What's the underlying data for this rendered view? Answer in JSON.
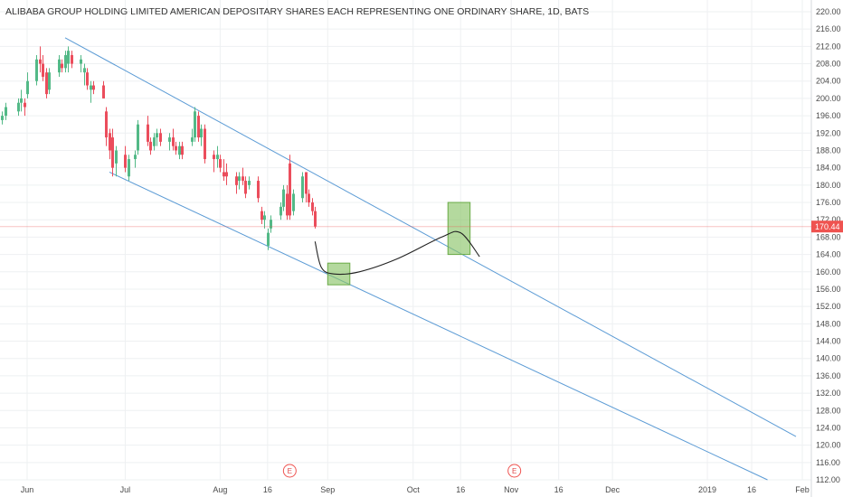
{
  "chart_data": {
    "type": "candlestick",
    "title": "ALIBABA GROUP HOLDING LIMITED AMERICAN DEPOSITARY SHARES EACH REPRESENTING ONE ORDINARY SHARE, 1D, BATS",
    "ylim": [
      112,
      222
    ],
    "yticks": [
      "220.00",
      "216.00",
      "212.00",
      "208.00",
      "204.00",
      "200.00",
      "196.00",
      "192.00",
      "188.00",
      "184.00",
      "180.00",
      "176.00",
      "172.00",
      "168.00",
      "164.00",
      "160.00",
      "156.00",
      "152.00",
      "148.00",
      "144.00",
      "140.00",
      "136.00",
      "132.00",
      "128.00",
      "124.00",
      "120.00",
      "116.00",
      "112.00"
    ],
    "xticks": [
      {
        "label": "Jun",
        "date": "2018-06-01"
      },
      {
        "label": "Jul",
        "date": "2018-07-02"
      },
      {
        "label": "Aug",
        "date": "2018-08-01"
      },
      {
        "label": "16",
        "date": "2018-08-16"
      },
      {
        "label": "Sep",
        "date": "2018-09-04"
      },
      {
        "label": "Oct",
        "date": "2018-10-01"
      },
      {
        "label": "16",
        "date": "2018-10-16"
      },
      {
        "label": "Nov",
        "date": "2018-11-01"
      },
      {
        "label": "16",
        "date": "2018-11-16"
      },
      {
        "label": "Dec",
        "date": "2018-12-03"
      },
      {
        "label": "2019",
        "date": "2019-01-02"
      },
      {
        "label": "16",
        "date": "2019-01-16"
      },
      {
        "label": "Feb",
        "date": "2019-02-01"
      }
    ],
    "last_price": "170.44",
    "candles": [
      {
        "date": "2018-05-24",
        "o": 195,
        "h": 197,
        "l": 194,
        "c": 196
      },
      {
        "date": "2018-05-25",
        "o": 196,
        "h": 199,
        "l": 195,
        "c": 198
      },
      {
        "date": "2018-05-29",
        "o": 197,
        "h": 200,
        "l": 196,
        "c": 199
      },
      {
        "date": "2018-05-30",
        "o": 199,
        "h": 202,
        "l": 197,
        "c": 200
      },
      {
        "date": "2018-05-31",
        "o": 199,
        "h": 200,
        "l": 196,
        "c": 198
      },
      {
        "date": "2018-06-01",
        "o": 201,
        "h": 206,
        "l": 200,
        "c": 204
      },
      {
        "date": "2018-06-04",
        "o": 204,
        "h": 210,
        "l": 203,
        "c": 209
      },
      {
        "date": "2018-06-05",
        "o": 209,
        "h": 212,
        "l": 206,
        "c": 208
      },
      {
        "date": "2018-06-06",
        "o": 208,
        "h": 210,
        "l": 204,
        "c": 205
      },
      {
        "date": "2018-06-07",
        "o": 206,
        "h": 207,
        "l": 200,
        "c": 201
      },
      {
        "date": "2018-06-08",
        "o": 202,
        "h": 207,
        "l": 201,
        "c": 206
      },
      {
        "date": "2018-06-11",
        "o": 206,
        "h": 210,
        "l": 205,
        "c": 209
      },
      {
        "date": "2018-06-12",
        "o": 208,
        "h": 209,
        "l": 206,
        "c": 207
      },
      {
        "date": "2018-06-13",
        "o": 207,
        "h": 211,
        "l": 206,
        "c": 210
      },
      {
        "date": "2018-06-14",
        "o": 208,
        "h": 212,
        "l": 206,
        "c": 211
      },
      {
        "date": "2018-06-15",
        "o": 210,
        "h": 211,
        "l": 207,
        "c": 208
      },
      {
        "date": "2018-06-18",
        "o": 208,
        "h": 210,
        "l": 206,
        "c": 209
      },
      {
        "date": "2018-06-19",
        "o": 206,
        "h": 208,
        "l": 203,
        "c": 207
      },
      {
        "date": "2018-06-20",
        "o": 206,
        "h": 207,
        "l": 202,
        "c": 203
      },
      {
        "date": "2018-06-21",
        "o": 202,
        "h": 204,
        "l": 199,
        "c": 203
      },
      {
        "date": "2018-06-22",
        "o": 203,
        "h": 204,
        "l": 201,
        "c": 202
      },
      {
        "date": "2018-06-25",
        "o": 203,
        "h": 204,
        "l": 200,
        "c": 200
      },
      {
        "date": "2018-06-26",
        "o": 197,
        "h": 198,
        "l": 189,
        "c": 191
      },
      {
        "date": "2018-06-27",
        "o": 192,
        "h": 193,
        "l": 186,
        "c": 188
      },
      {
        "date": "2018-06-28",
        "o": 191,
        "h": 193,
        "l": 182,
        "c": 184
      },
      {
        "date": "2018-06-29",
        "o": 185,
        "h": 189,
        "l": 182,
        "c": 188
      },
      {
        "date": "2018-07-02",
        "o": 187,
        "h": 189,
        "l": 183,
        "c": 184
      },
      {
        "date": "2018-07-03",
        "o": 182,
        "h": 187,
        "l": 181,
        "c": 186
      },
      {
        "date": "2018-07-05",
        "o": 186,
        "h": 188,
        "l": 184,
        "c": 187
      },
      {
        "date": "2018-07-06",
        "o": 188,
        "h": 195,
        "l": 187,
        "c": 194
      },
      {
        "date": "2018-07-09",
        "o": 194,
        "h": 196,
        "l": 189,
        "c": 190
      },
      {
        "date": "2018-07-10",
        "o": 190,
        "h": 191,
        "l": 187,
        "c": 188
      },
      {
        "date": "2018-07-11",
        "o": 189,
        "h": 192,
        "l": 188,
        "c": 191
      },
      {
        "date": "2018-07-12",
        "o": 191,
        "h": 193,
        "l": 189,
        "c": 192
      },
      {
        "date": "2018-07-13",
        "o": 192,
        "h": 193,
        "l": 189,
        "c": 190
      },
      {
        "date": "2018-07-16",
        "o": 190,
        "h": 192,
        "l": 188,
        "c": 191
      },
      {
        "date": "2018-07-17",
        "o": 191,
        "h": 193,
        "l": 188,
        "c": 189
      },
      {
        "date": "2018-07-18",
        "o": 189,
        "h": 190,
        "l": 187,
        "c": 188
      },
      {
        "date": "2018-07-19",
        "o": 187,
        "h": 190,
        "l": 186,
        "c": 189
      },
      {
        "date": "2018-07-20",
        "o": 189,
        "h": 190,
        "l": 186,
        "c": 187
      },
      {
        "date": "2018-07-23",
        "o": 190,
        "h": 193,
        "l": 189,
        "c": 191
      },
      {
        "date": "2018-07-24",
        "o": 191,
        "h": 198,
        "l": 190,
        "c": 197
      },
      {
        "date": "2018-07-25",
        "o": 196,
        "h": 197,
        "l": 190,
        "c": 191
      },
      {
        "date": "2018-07-26",
        "o": 191,
        "h": 194,
        "l": 189,
        "c": 193
      },
      {
        "date": "2018-07-27",
        "o": 193,
        "h": 194,
        "l": 185,
        "c": 186
      },
      {
        "date": "2018-07-30",
        "o": 187,
        "h": 188,
        "l": 183,
        "c": 186
      },
      {
        "date": "2018-07-31",
        "o": 186,
        "h": 189,
        "l": 184,
        "c": 187
      },
      {
        "date": "2018-08-01",
        "o": 186,
        "h": 187,
        "l": 183,
        "c": 184
      },
      {
        "date": "2018-08-02",
        "o": 183,
        "h": 186,
        "l": 181,
        "c": 182
      },
      {
        "date": "2018-08-03",
        "o": 183,
        "h": 185,
        "l": 180,
        "c": 182
      },
      {
        "date": "2018-08-06",
        "o": 182,
        "h": 183,
        "l": 178,
        "c": 180
      },
      {
        "date": "2018-08-07",
        "o": 181,
        "h": 183,
        "l": 179,
        "c": 182
      },
      {
        "date": "2018-08-08",
        "o": 182,
        "h": 184,
        "l": 180,
        "c": 181
      },
      {
        "date": "2018-08-09",
        "o": 181,
        "h": 182,
        "l": 177,
        "c": 178
      },
      {
        "date": "2018-08-10",
        "o": 180,
        "h": 182,
        "l": 179,
        "c": 181
      },
      {
        "date": "2018-08-13",
        "o": 181,
        "h": 182,
        "l": 176,
        "c": 177
      },
      {
        "date": "2018-08-14",
        "o": 174,
        "h": 175,
        "l": 171,
        "c": 172
      },
      {
        "date": "2018-08-15",
        "o": 172,
        "h": 174,
        "l": 170,
        "c": 173
      },
      {
        "date": "2018-08-16",
        "o": 166,
        "h": 170,
        "l": 165,
        "c": 169
      },
      {
        "date": "2018-08-17",
        "o": 170,
        "h": 173,
        "l": 169,
        "c": 172
      },
      {
        "date": "2018-08-20",
        "o": 173,
        "h": 176,
        "l": 172,
        "c": 175
      },
      {
        "date": "2018-08-21",
        "o": 175,
        "h": 180,
        "l": 174,
        "c": 179
      },
      {
        "date": "2018-08-22",
        "o": 178,
        "h": 180,
        "l": 172,
        "c": 173
      },
      {
        "date": "2018-08-23",
        "o": 185,
        "h": 187,
        "l": 172,
        "c": 173
      },
      {
        "date": "2018-08-24",
        "o": 174,
        "h": 179,
        "l": 173,
        "c": 178
      },
      {
        "date": "2018-08-27",
        "o": 177,
        "h": 183,
        "l": 176,
        "c": 182
      },
      {
        "date": "2018-08-28",
        "o": 183,
        "h": 183,
        "l": 176,
        "c": 178
      },
      {
        "date": "2018-08-29",
        "o": 178,
        "h": 179,
        "l": 175,
        "c": 176
      },
      {
        "date": "2018-08-30",
        "o": 176,
        "h": 177,
        "l": 173,
        "c": 174
      },
      {
        "date": "2018-08-31",
        "o": 174,
        "h": 175,
        "l": 170,
        "c": 170.44
      }
    ],
    "channel_lines": [
      {
        "from": {
          "date": "2018-06-13",
          "price": 214
        },
        "to": {
          "date": "2019-01-30",
          "price": 122
        }
      },
      {
        "from": {
          "date": "2018-06-27",
          "price": 183
        },
        "to": {
          "date": "2019-01-21",
          "price": 112
        }
      }
    ],
    "target_zones": [
      {
        "from": {
          "date": "2018-09-04",
          "price": 162
        },
        "to": {
          "date": "2018-09-11",
          "price": 157
        }
      },
      {
        "from": {
          "date": "2018-10-12",
          "price": 176
        },
        "to": {
          "date": "2018-10-19",
          "price": 164
        }
      }
    ],
    "projection_path": [
      {
        "date": "2018-08-31",
        "price": 167
      },
      {
        "date": "2018-09-02",
        "price": 161
      },
      {
        "date": "2018-09-06",
        "price": 159.5
      },
      {
        "date": "2018-09-14",
        "price": 160
      },
      {
        "date": "2018-09-26",
        "price": 163
      },
      {
        "date": "2018-10-10",
        "price": 168
      },
      {
        "date": "2018-10-16",
        "price": 169
      },
      {
        "date": "2018-10-22",
        "price": 163.5
      }
    ],
    "events": [
      {
        "date": "2018-08-23",
        "label": "E"
      },
      {
        "date": "2018-11-02",
        "label": "E"
      }
    ],
    "colors": {
      "up": "#53b987",
      "down": "#eb4d5c",
      "channel": "#5b9bd5",
      "zone_fill": "#8cc56a",
      "zone_stroke": "#6aab47",
      "projection": "#222222",
      "price_tag": "#ef5350",
      "grid": "#eef0f2",
      "axis_text": "#4a4a4a"
    }
  }
}
